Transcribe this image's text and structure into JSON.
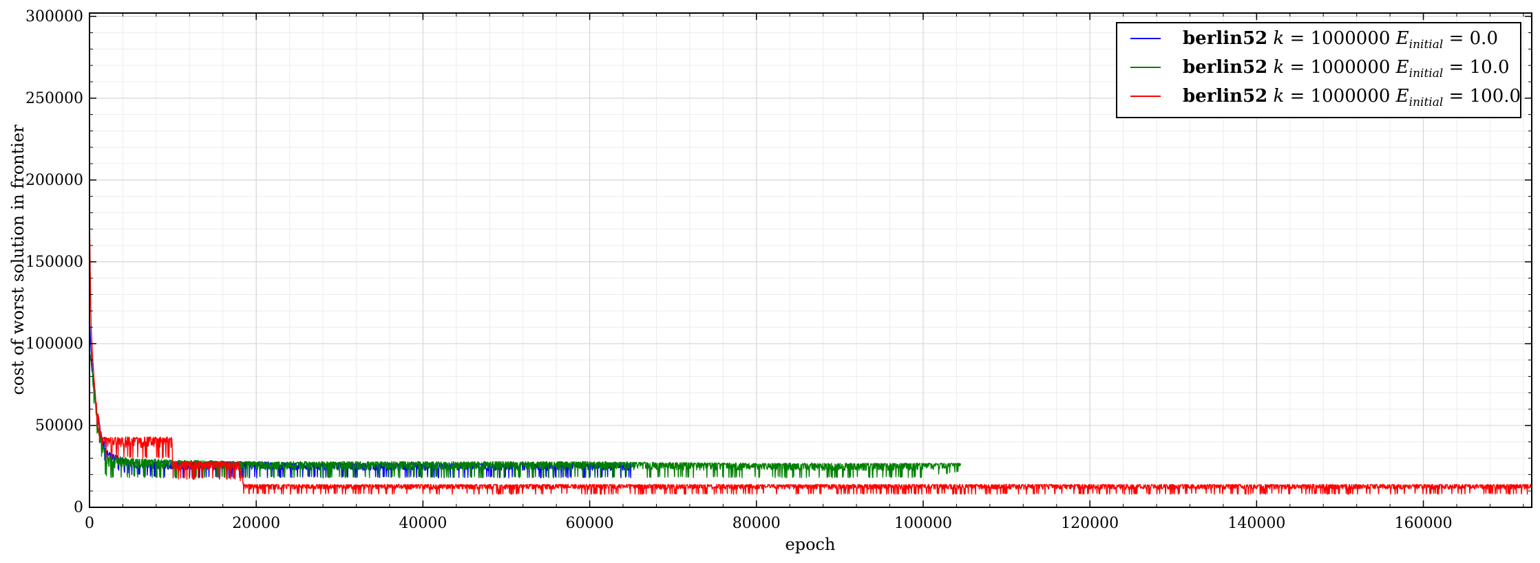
{
  "chart_data": {
    "type": "line",
    "title": "",
    "xlabel": "epoch",
    "ylabel": "cost of worst solution in frontier",
    "xlim": [
      0,
      173000
    ],
    "ylim": [
      0,
      302000
    ],
    "xticks": [
      0,
      20000,
      40000,
      60000,
      80000,
      100000,
      120000,
      140000,
      160000
    ],
    "xtick_labels": [
      "0",
      "20000",
      "40000",
      "60000",
      "80000",
      "100000",
      "120000",
      "140000",
      "160000"
    ],
    "yticks": [
      0,
      50000,
      100000,
      150000,
      200000,
      250000,
      300000
    ],
    "ytick_labels": [
      "0",
      "50000",
      "100000",
      "150000",
      "200000",
      "250000",
      "300000"
    ],
    "grid": true,
    "minor_grid": true,
    "legend_position": "top-right",
    "series": [
      {
        "name": "berlin52 k = 1000000 E_initial = 0.0",
        "legend": {
          "bold": "berlin52",
          "k": "k",
          "eq1": " = 1000000 ",
          "E": "E",
          "sub": "initial",
          "eq2": " = 0.0"
        },
        "color": "#0000ff",
        "x": [
          0,
          200,
          400,
          600,
          800,
          1000,
          1500,
          2000,
          5000,
          10000,
          20000,
          30000,
          40000,
          50000,
          60000,
          65000
        ],
        "y": [
          115000,
          95000,
          80000,
          70000,
          60000,
          55000,
          45000,
          35000,
          28000,
          28000,
          28000,
          27000,
          27000,
          27000,
          27000,
          27000
        ],
        "y_low": [
          115000,
          95000,
          80000,
          70000,
          60000,
          50000,
          35000,
          25000,
          20000,
          18000,
          18000,
          18000,
          18000,
          18000,
          18000,
          18000
        ]
      },
      {
        "name": "berlin52 k = 1000000 E_initial = 10.0",
        "legend": {
          "bold": "berlin52",
          "k": "k",
          "eq1": " = 1000000 ",
          "E": "E",
          "sub": "initial",
          "eq2": " = 10.0"
        },
        "color": "#008000",
        "x": [
          0,
          200,
          400,
          600,
          800,
          1000,
          1500,
          2000,
          5000,
          10000,
          20000,
          40000,
          60000,
          80000,
          100000,
          104500
        ],
        "y": [
          95000,
          90000,
          80000,
          70000,
          60000,
          50000,
          40000,
          32000,
          30000,
          29000,
          28000,
          28000,
          28000,
          27000,
          27000,
          27000
        ],
        "y_low": [
          95000,
          85000,
          70000,
          60000,
          50000,
          40000,
          30000,
          18000,
          18000,
          18000,
          18000,
          18000,
          18000,
          18000,
          18000,
          22000
        ]
      },
      {
        "name": "berlin52 k = 1000000 E_initial = 100.0",
        "legend": {
          "bold": "berlin52",
          "k": "k",
          "eq1": " = 1000000 ",
          "E": "E",
          "sub": "initial",
          "eq2": " = 100.0"
        },
        "color": "#ff0000",
        "x": [
          0,
          100,
          200,
          400,
          600,
          800,
          1000,
          1500,
          5000,
          9900,
          10000,
          18000,
          18500,
          40000,
          80000,
          120000,
          160000,
          173000
        ],
        "y": [
          180000,
          140000,
          110000,
          90000,
          75000,
          65000,
          58000,
          43000,
          43000,
          43000,
          28000,
          28000,
          14000,
          14000,
          14000,
          14000,
          14000,
          14000
        ],
        "y_low": [
          180000,
          140000,
          110000,
          90000,
          70000,
          55000,
          45000,
          30000,
          30000,
          30000,
          17000,
          17000,
          8000,
          8000,
          8000,
          8000,
          8000,
          8000
        ]
      }
    ]
  }
}
